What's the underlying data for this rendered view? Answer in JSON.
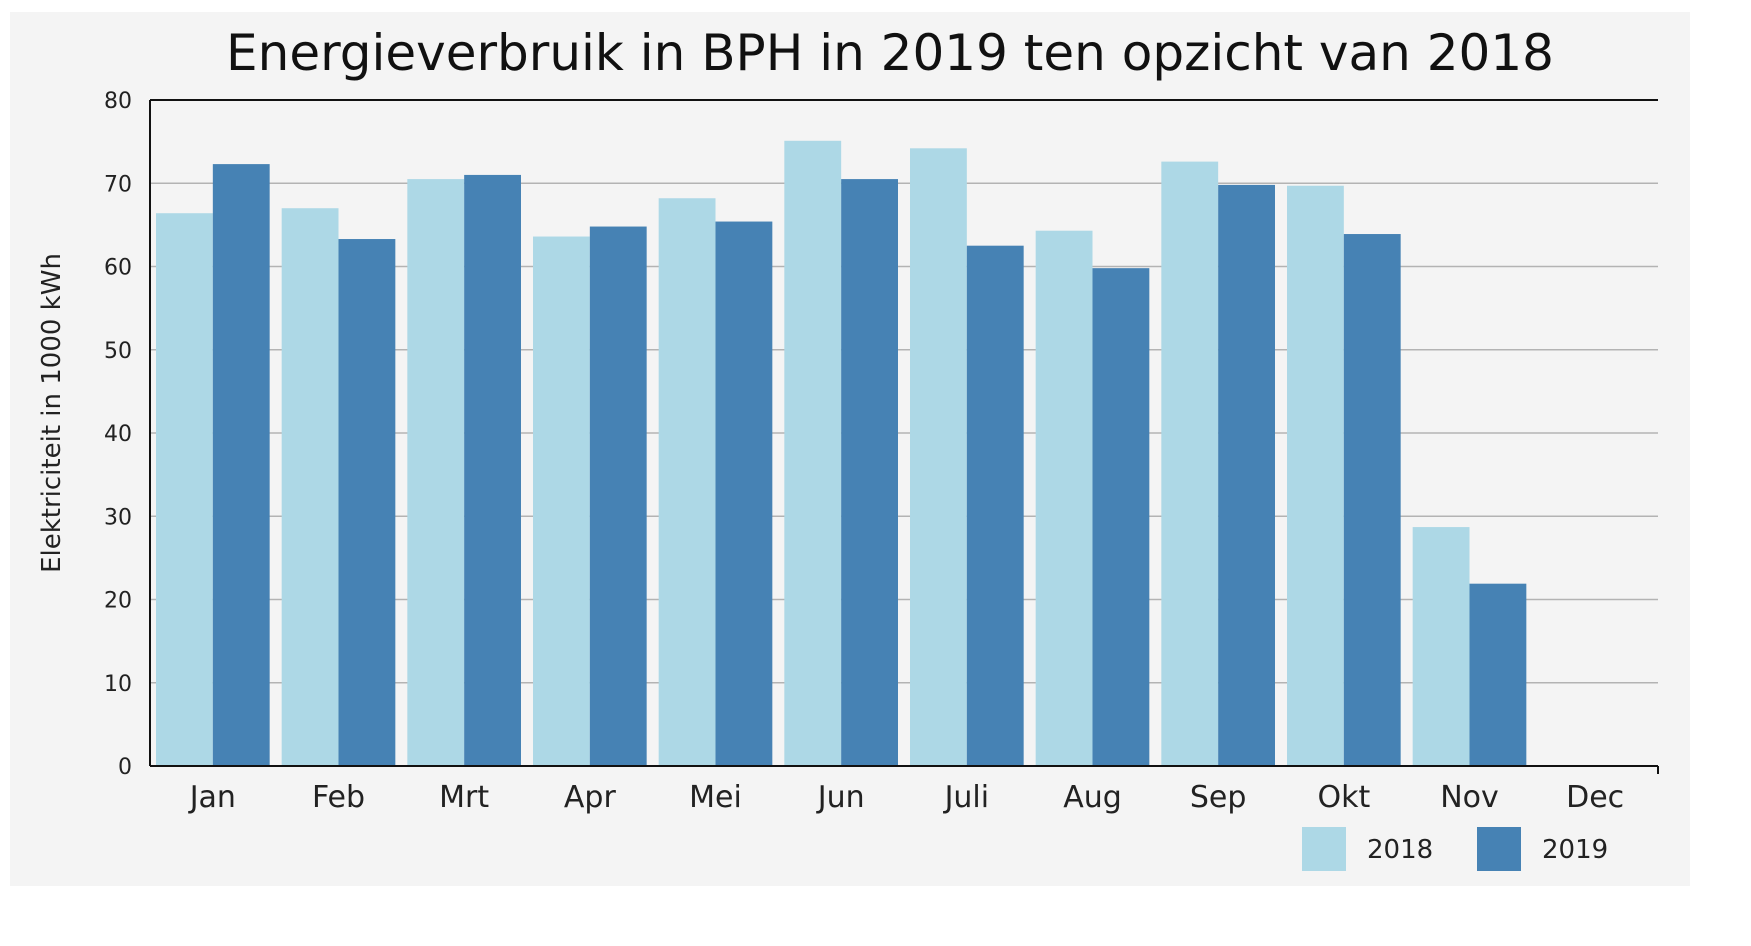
{
  "colors": {
    "panel_background": "#f4f4f4",
    "series_2018": "#add8e6",
    "series_2019": "#4682b4",
    "gridline": "#b3b3b3",
    "axis": "#111111"
  },
  "chart_data": {
    "type": "bar",
    "title": "Energieverbruik in BPH in 2019 ten opzicht van 2018",
    "xlabel": "",
    "ylabel": "Elektriciteit in 1000 kWh",
    "ylim": [
      0,
      80
    ],
    "yticks": [
      0,
      10,
      20,
      30,
      40,
      50,
      60,
      70,
      80
    ],
    "grid": "horizontal",
    "legend_position": "bottom-right",
    "categories": [
      "Jan",
      "Feb",
      "Mrt",
      "Apr",
      "Mei",
      "Jun",
      "Juli",
      "Aug",
      "Sep",
      "Okt",
      "Nov",
      "Dec"
    ],
    "series": [
      {
        "name": "2018",
        "color": "#add8e6",
        "values": [
          66.4,
          67.0,
          70.5,
          63.6,
          68.2,
          75.1,
          74.2,
          64.3,
          72.6,
          69.7,
          28.7,
          null
        ]
      },
      {
        "name": "2019",
        "color": "#4682b4",
        "values": [
          72.3,
          63.3,
          71.0,
          64.8,
          65.4,
          70.5,
          62.5,
          59.8,
          69.8,
          63.9,
          21.9,
          null
        ]
      }
    ]
  }
}
